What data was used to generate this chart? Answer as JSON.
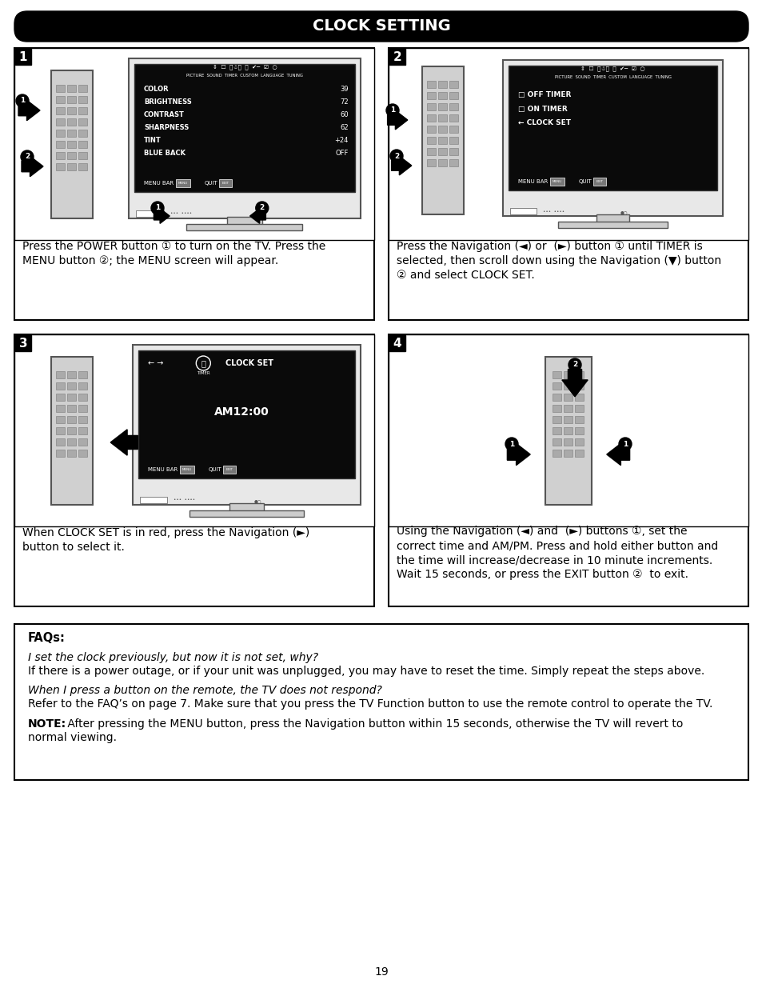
{
  "title": "CLOCK SETTING",
  "page_number": "19",
  "bg_color": "#ffffff",
  "title_bg": "#000000",
  "title_text_color": "#ffffff",
  "menu_items": [
    "COLOR",
    "BRIGHTNESS",
    "CONTRAST",
    "SHARPNESS",
    "TINT",
    "BLUE BACK"
  ],
  "menu_values": [
    "39",
    "72",
    "60",
    "62",
    "+24",
    "OFF"
  ],
  "clock_set_menu_items": [
    "OFF TIMER",
    "ON TIMER",
    "CLOCK SET"
  ],
  "clock_time": "AM12:00",
  "step1_text1": "Press the POWER button ",
  "step1_n1": "①",
  "step1_text2": " to turn on the TV. Press the",
  "step1_text3": "MENU button ",
  "step1_n2": "②",
  "step1_text4": "; the MENU screen will appear.",
  "step2_line1a": "Press the Navigation (◄) or  (►) button ",
  "step2_n1": "①",
  "step2_line1b": " until TIMER is",
  "step2_line2": "selected, then scroll down using the Navigation (▼) button",
  "step2_n2": "②",
  "step2_line3": " and select CLOCK SET.",
  "step3_line1a": "When CLOCK SET is in red, press the Navigation (►)",
  "step3_line2": "button to select it.",
  "step4_line1a": "Using the Navigation (◄) and  (►) buttons ",
  "step4_n1": "①",
  "step4_line1b": ", set the",
  "step4_line2": "correct time and AM/PM. Press and hold either button and",
  "step4_line3": "the time will increase/decrease in 10 minute increments.",
  "step4_line4a": "Wait 15 seconds, or press the EXIT button ",
  "step4_n2": "②",
  "step4_line4b": "  to exit.",
  "faq_title": "FAQs:",
  "faq_q1": "I set the clock previously, but now it is not set, why?",
  "faq_a1": "If there is a power outage, or if your unit was unplugged, you may have to reset the time. Simply repeat the steps above.",
  "faq_q2": "When I press a button on the remote, the TV does not respond?",
  "faq_a2": "Refer to the FAQ’s on page 7. Make sure that you press the TV Function button to use the remote control to operate the TV.",
  "note_bold": "NOTE:",
  "note_rest": " After pressing the MENU button, press the Navigation button within 15 seconds, otherwise the TV will revert to",
  "note_line2": "normal viewing."
}
